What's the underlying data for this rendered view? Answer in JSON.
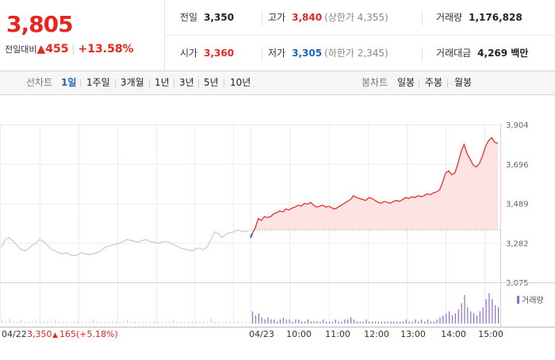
{
  "quote": {
    "price": "3,805",
    "change_label": "전일대비",
    "change_arrow": "▲",
    "change_value": "455",
    "change_pct": "+13.58%"
  },
  "stats": {
    "prev_label": "전일",
    "prev_value": "3,350",
    "high_label": "고가",
    "high_value": "3,840",
    "upper_limit": "(상한가 4,355)",
    "volume_label": "거래량",
    "volume_value": "1,176,828",
    "open_label": "시가",
    "open_value": "3,360",
    "low_label": "저가",
    "low_value": "3,305",
    "lower_limit": "(하한가 2,345)",
    "amount_label": "거래대금",
    "amount_value": "4,269 백만"
  },
  "line_tabs": {
    "title": "선차트",
    "items": [
      "1일",
      "1주일",
      "3개월",
      "1년",
      "3년",
      "5년",
      "10년"
    ],
    "active": 0
  },
  "candle_tabs": {
    "title": "봉차트",
    "items": [
      "일봉",
      "주봉",
      "월봉"
    ]
  },
  "colors": {
    "up": "#e8241c",
    "down": "#1f5fc6",
    "prev_line": "#c8c8c8",
    "volume": "#8b6ec4"
  },
  "chart_data": {
    "type": "line",
    "yticks": [
      "3,904",
      "3,696",
      "3,489",
      "3,282",
      "3,075"
    ],
    "ylim": [
      3075,
      3904
    ],
    "prev_close": 3350,
    "xticks": [
      "04/23",
      "10:00",
      "11:00",
      "12:00",
      "13:00",
      "14:00",
      "15:00"
    ],
    "prev_day_info": {
      "date": "04/22",
      "close": "3,350",
      "arrow": "▲",
      "change": "165",
      "pct": "(+5.18%)"
    },
    "volume_legend": "거래량",
    "prev_day_series": [
      3260,
      3300,
      3310,
      3290,
      3270,
      3250,
      3240,
      3250,
      3270,
      3280,
      3300,
      3290,
      3270,
      3250,
      3240,
      3230,
      3225,
      3230,
      3220,
      3215,
      3220,
      3230,
      3225,
      3220,
      3225,
      3230,
      3240,
      3255,
      3265,
      3270,
      3275,
      3280,
      3290,
      3300,
      3295,
      3290,
      3285,
      3295,
      3300,
      3290,
      3285,
      3280,
      3285,
      3290,
      3285,
      3275,
      3265,
      3255,
      3250,
      3245,
      3240,
      3250,
      3255,
      3245,
      3260,
      3300,
      3340,
      3330,
      3310,
      3330,
      3335,
      3340,
      3350,
      3345,
      3340,
      3350
    ],
    "today_series": [
      3330,
      3360,
      3410,
      3400,
      3420,
      3415,
      3420,
      3435,
      3440,
      3450,
      3445,
      3460,
      3455,
      3465,
      3470,
      3480,
      3475,
      3490,
      3485,
      3495,
      3480,
      3470,
      3475,
      3480,
      3470,
      3475,
      3465,
      3460,
      3470,
      3480,
      3490,
      3500,
      3510,
      3530,
      3520,
      3515,
      3510,
      3505,
      3520,
      3515,
      3505,
      3495,
      3490,
      3500,
      3495,
      3490,
      3500,
      3505,
      3500,
      3510,
      3520,
      3515,
      3525,
      3520,
      3530,
      3525,
      3530,
      3540,
      3535,
      3545,
      3550,
      3560,
      3600,
      3650,
      3660,
      3640,
      3650,
      3700,
      3760,
      3800,
      3750,
      3720,
      3690,
      3680,
      3700,
      3740,
      3790,
      3820,
      3835,
      3810,
      3805
    ],
    "prev_day_volume": [
      2,
      1,
      3,
      1,
      1,
      2,
      1,
      1,
      1,
      2,
      1,
      1,
      1,
      1,
      2,
      1,
      1,
      1,
      1,
      1,
      1,
      1,
      1,
      1,
      2,
      1,
      1,
      1,
      1,
      1,
      1,
      1,
      1,
      2,
      1,
      1,
      1,
      1,
      1,
      1,
      1,
      1,
      1,
      1,
      1,
      2,
      1,
      1,
      1,
      1,
      1,
      1,
      1,
      1,
      1,
      3,
      1,
      1,
      1,
      1,
      1,
      1,
      1,
      1,
      1,
      1
    ],
    "today_volume": [
      6,
      4,
      5,
      3,
      2,
      3,
      2,
      2,
      1,
      2,
      3,
      2,
      2,
      1,
      2,
      2,
      1,
      1,
      2,
      1,
      1,
      1,
      1,
      2,
      1,
      1,
      1,
      2,
      1,
      1,
      2,
      2,
      3,
      2,
      1,
      1,
      1,
      2,
      1,
      1,
      1,
      1,
      1,
      1,
      1,
      1,
      1,
      1,
      1,
      1,
      2,
      1,
      1,
      2,
      1,
      2,
      1,
      2,
      1,
      1,
      2,
      3,
      4,
      5,
      6,
      4,
      5,
      7,
      10,
      14,
      8,
      6,
      5,
      4,
      6,
      8,
      12,
      15,
      12,
      9,
      8
    ],
    "volume_max": 16
  }
}
